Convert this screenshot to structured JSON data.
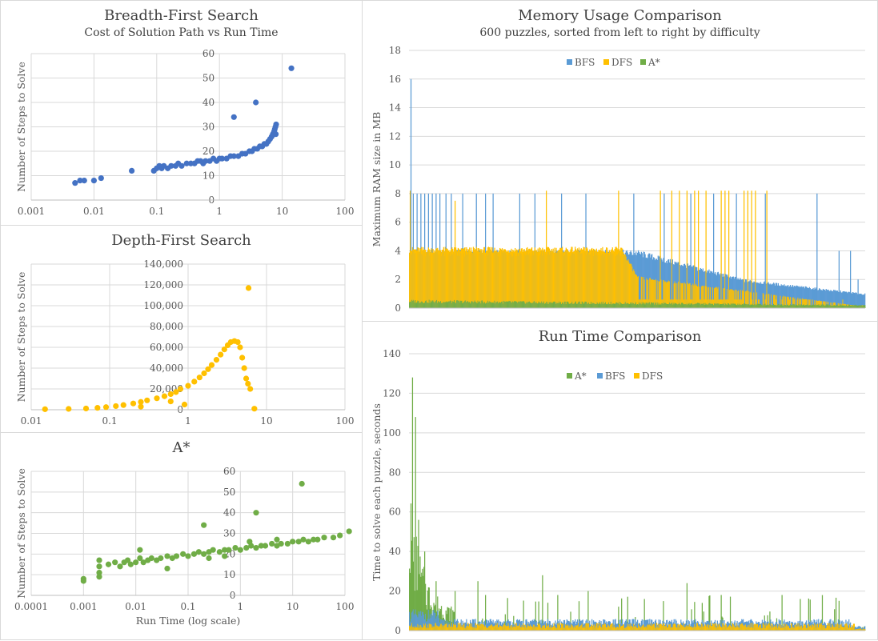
{
  "colors": {
    "bfs": "#4472c4",
    "bfs_bar": "#5b9bd5",
    "dfs": "#ffc000",
    "astar": "#70ad47",
    "grid": "#d9d9d9"
  },
  "chart_data": [
    {
      "id": "bfs",
      "type": "scatter",
      "title": "Breadth-First Search",
      "subtitle": "Cost of Solution  Path vs Run Time",
      "xlabel": "",
      "ylabel": "Number of Steps to Solve",
      "xscale": "log",
      "xlim": [
        0.001,
        100
      ],
      "ylim": [
        0,
        60
      ],
      "x_ticks": [
        "0.001",
        "0.01",
        "0.1",
        "1",
        "10",
        "100"
      ],
      "y_ticks": [
        "0",
        "10",
        "20",
        "30",
        "40",
        "50",
        "60"
      ],
      "grid": true,
      "points": [
        [
          0.005,
          7
        ],
        [
          0.006,
          8
        ],
        [
          0.007,
          8
        ],
        [
          0.01,
          8
        ],
        [
          0.013,
          9
        ],
        [
          0.04,
          12
        ],
        [
          0.09,
          12
        ],
        [
          0.1,
          13
        ],
        [
          0.11,
          14
        ],
        [
          0.12,
          13
        ],
        [
          0.13,
          14
        ],
        [
          0.15,
          13
        ],
        [
          0.17,
          14
        ],
        [
          0.2,
          14
        ],
        [
          0.22,
          15
        ],
        [
          0.25,
          14
        ],
        [
          0.3,
          15
        ],
        [
          0.35,
          15
        ],
        [
          0.4,
          15
        ],
        [
          0.45,
          16
        ],
        [
          0.5,
          16
        ],
        [
          0.55,
          15
        ],
        [
          0.6,
          16
        ],
        [
          0.7,
          16
        ],
        [
          0.8,
          17
        ],
        [
          0.9,
          16
        ],
        [
          1.0,
          17
        ],
        [
          1.1,
          17
        ],
        [
          1.3,
          17
        ],
        [
          1.5,
          18
        ],
        [
          1.7,
          18
        ],
        [
          2.0,
          18
        ],
        [
          2.3,
          19
        ],
        [
          2.6,
          19
        ],
        [
          3.0,
          20
        ],
        [
          3.3,
          20
        ],
        [
          3.6,
          21
        ],
        [
          4.0,
          21
        ],
        [
          4.4,
          22
        ],
        [
          4.8,
          22
        ],
        [
          5.2,
          23
        ],
        [
          5.6,
          23
        ],
        [
          6.0,
          24
        ],
        [
          6.4,
          25
        ],
        [
          6.8,
          26
        ],
        [
          7.1,
          27
        ],
        [
          7.4,
          28
        ],
        [
          7.6,
          29
        ],
        [
          7.8,
          30
        ],
        [
          8.0,
          31
        ],
        [
          7.9,
          27
        ],
        [
          1.7,
          34
        ],
        [
          3.8,
          40
        ],
        [
          14,
          54
        ]
      ]
    },
    {
      "id": "dfs",
      "type": "scatter",
      "title": "Depth-First Search",
      "subtitle": "",
      "xlabel": "",
      "ylabel": "Number of Steps to Solve",
      "xscale": "log",
      "xlim": [
        0.01,
        100
      ],
      "ylim": [
        0,
        140000
      ],
      "x_ticks": [
        "0.01",
        "0.1",
        "1",
        "10",
        "100"
      ],
      "y_ticks": [
        "0",
        "20,000",
        "40,000",
        "60,000",
        "80,000",
        "100,000",
        "120,000",
        "140,000"
      ],
      "grid": true,
      "points": [
        [
          0.015,
          500
        ],
        [
          0.03,
          800
        ],
        [
          0.05,
          1200
        ],
        [
          0.07,
          1800
        ],
        [
          0.09,
          2500
        ],
        [
          0.12,
          3500
        ],
        [
          0.15,
          4500
        ],
        [
          0.2,
          6000
        ],
        [
          0.25,
          7500
        ],
        [
          0.3,
          9000
        ],
        [
          0.4,
          11000
        ],
        [
          0.5,
          13000
        ],
        [
          0.6,
          15000
        ],
        [
          0.7,
          17000
        ],
        [
          0.8,
          20000
        ],
        [
          1.0,
          23000
        ],
        [
          1.2,
          27000
        ],
        [
          1.4,
          31000
        ],
        [
          1.6,
          35000
        ],
        [
          1.8,
          39000
        ],
        [
          2.0,
          43000
        ],
        [
          2.3,
          48000
        ],
        [
          2.6,
          53000
        ],
        [
          2.9,
          58000
        ],
        [
          3.2,
          62000
        ],
        [
          3.5,
          65000
        ],
        [
          3.9,
          66000
        ],
        [
          4.3,
          65000
        ],
        [
          4.6,
          60000
        ],
        [
          4.9,
          50000
        ],
        [
          5.2,
          40000
        ],
        [
          5.5,
          30000
        ],
        [
          5.8,
          25000
        ],
        [
          6.2,
          20000
        ],
        [
          5.9,
          117000
        ],
        [
          7.0,
          1000
        ],
        [
          0.9,
          5000
        ],
        [
          0.25,
          3000
        ],
        [
          0.6,
          8000
        ]
      ]
    },
    {
      "id": "astar",
      "type": "scatter",
      "title": "A*",
      "subtitle": "",
      "xlabel": "Run Time (log scale)",
      "ylabel": "Number of Steps to Solve",
      "xscale": "log",
      "xlim": [
        0.0001,
        100
      ],
      "ylim": [
        0,
        60
      ],
      "x_ticks": [
        "0.0001",
        "0.001",
        "0.01",
        "0.1",
        "1",
        "10",
        "100"
      ],
      "y_ticks": [
        "0",
        "10",
        "20",
        "30",
        "40",
        "50",
        "60"
      ],
      "grid": true,
      "points": [
        [
          0.001,
          7
        ],
        [
          0.001,
          8
        ],
        [
          0.002,
          9
        ],
        [
          0.002,
          11
        ],
        [
          0.002,
          14
        ],
        [
          0.002,
          17
        ],
        [
          0.003,
          15
        ],
        [
          0.004,
          16
        ],
        [
          0.005,
          14
        ],
        [
          0.006,
          16
        ],
        [
          0.007,
          17
        ],
        [
          0.008,
          15
        ],
        [
          0.01,
          16
        ],
        [
          0.012,
          18
        ],
        [
          0.014,
          16
        ],
        [
          0.017,
          17
        ],
        [
          0.02,
          18
        ],
        [
          0.025,
          17
        ],
        [
          0.03,
          18
        ],
        [
          0.04,
          19
        ],
        [
          0.05,
          18
        ],
        [
          0.06,
          19
        ],
        [
          0.08,
          20
        ],
        [
          0.1,
          19
        ],
        [
          0.13,
          20
        ],
        [
          0.16,
          21
        ],
        [
          0.2,
          20
        ],
        [
          0.25,
          21
        ],
        [
          0.3,
          22
        ],
        [
          0.4,
          21
        ],
        [
          0.5,
          22
        ],
        [
          0.6,
          22
        ],
        [
          0.8,
          23
        ],
        [
          1.0,
          22
        ],
        [
          1.3,
          23
        ],
        [
          1.6,
          24
        ],
        [
          2.0,
          23
        ],
        [
          2.5,
          24
        ],
        [
          3.0,
          24
        ],
        [
          4.0,
          25
        ],
        [
          5.0,
          24
        ],
        [
          6.0,
          25
        ],
        [
          8.0,
          25
        ],
        [
          10,
          26
        ],
        [
          13,
          26
        ],
        [
          16,
          27
        ],
        [
          20,
          26
        ],
        [
          25,
          27
        ],
        [
          30,
          27
        ],
        [
          40,
          28
        ],
        [
          60,
          28
        ],
        [
          80,
          29
        ],
        [
          120,
          31
        ],
        [
          0.012,
          22
        ],
        [
          0.04,
          13
        ],
        [
          0.2,
          34
        ],
        [
          2.0,
          40
        ],
        [
          15,
          54
        ],
        [
          0.25,
          18
        ],
        [
          0.5,
          19
        ],
        [
          1.5,
          26
        ],
        [
          5.0,
          27
        ]
      ]
    },
    {
      "id": "memory",
      "type": "bar",
      "title": "Memory Usage Comparison",
      "subtitle": "600 puzzles, sorted from left to right by difficulty",
      "xlabel": "",
      "ylabel": "Maximum RAM size in MB",
      "ylim": [
        0,
        18
      ],
      "y_ticks": [
        "0",
        "2",
        "4",
        "6",
        "8",
        "10",
        "12",
        "14",
        "16",
        "18"
      ],
      "grid": true,
      "legend_position": "top",
      "n_puzzles": 600,
      "series": [
        {
          "name": "BFS",
          "color": "#5b9bd5",
          "baseline": [
            [
              0,
              4
            ],
            [
              300,
              4
            ],
            [
              440,
              2
            ],
            [
              600,
              1
            ]
          ],
          "spikes": [
            [
              2,
              16
            ],
            [
              5,
              8
            ],
            [
              10,
              8
            ],
            [
              15,
              8
            ],
            [
              20,
              8
            ],
            [
              25,
              8
            ],
            [
              30,
              8
            ],
            [
              35,
              8
            ],
            [
              40,
              8
            ],
            [
              48,
              8
            ],
            [
              55,
              8
            ],
            [
              70,
              8
            ],
            [
              88,
              8
            ],
            [
              100,
              8
            ],
            [
              110,
              8
            ],
            [
              145,
              8
            ],
            [
              165,
              8
            ],
            [
              200,
              8
            ],
            [
              232,
              8
            ],
            [
              295,
              8
            ],
            [
              335,
              8
            ],
            [
              370,
              8
            ],
            [
              400,
              8
            ],
            [
              430,
              8
            ],
            [
              468,
              8
            ],
            [
              536,
              8
            ],
            [
              565,
              4
            ],
            [
              580,
              4
            ],
            [
              590,
              2
            ]
          ]
        },
        {
          "name": "DFS",
          "color": "#ffc000",
          "baseline": [
            [
              0,
              4.2
            ],
            [
              280,
              4.2
            ],
            [
              300,
              2.2
            ],
            [
              600,
              0.1
            ]
          ],
          "spikes": [
            [
              1,
              8.2
            ],
            [
              60,
              7.5
            ],
            [
              180,
              8.2
            ],
            [
              275,
              8.2
            ],
            [
              310,
              8.2
            ],
            [
              330,
              8.2
            ],
            [
              345,
              8.2
            ],
            [
              355,
              8.2
            ],
            [
              365,
              8.2
            ],
            [
              375,
              8.2
            ],
            [
              380,
              8.2
            ],
            [
              390,
              8.2
            ],
            [
              400,
              8.2
            ],
            [
              410,
              8.2
            ],
            [
              415,
              8.2
            ],
            [
              420,
              8.2
            ],
            [
              428,
              8.2
            ],
            [
              435,
              8.2
            ],
            [
              440,
              8.2
            ],
            [
              445,
              8.2
            ],
            [
              450,
              8.2
            ],
            [
              455,
              8.2
            ],
            [
              470,
              8.2
            ],
            [
              570,
              8.2
            ]
          ]
        },
        {
          "name": "A*",
          "color": "#70ad47",
          "baseline": [
            [
              0,
              0.5
            ],
            [
              600,
              0.2
            ]
          ],
          "spikes": []
        }
      ]
    },
    {
      "id": "runtime",
      "type": "bar",
      "title": "Run Time Comparison",
      "subtitle": "",
      "xlabel": "",
      "ylabel": "Time to solve each puzzle, seconds",
      "ylim": [
        0,
        140
      ],
      "y_ticks": [
        "0",
        "20",
        "40",
        "60",
        "80",
        "100",
        "120",
        "140"
      ],
      "grid": true,
      "legend_position": "top",
      "n_puzzles": 600,
      "series": [
        {
          "name": "A*",
          "color": "#70ad47",
          "peak": 128,
          "spikes": [
            [
              8,
              108
            ],
            [
              12,
              56
            ],
            [
              20,
              40
            ],
            [
              35,
              25
            ],
            [
              60,
              20
            ],
            [
              90,
              25
            ],
            [
              100,
              18
            ],
            [
              175,
              28
            ],
            [
              195,
              18
            ],
            [
              235,
              20
            ],
            [
              365,
              24
            ],
            [
              385,
              14
            ],
            [
              410,
              18
            ],
            [
              490,
              18
            ]
          ]
        },
        {
          "name": "BFS",
          "color": "#5b9bd5",
          "level": 7
        },
        {
          "name": "DFS",
          "color": "#ffc000",
          "level": 3
        }
      ]
    }
  ]
}
